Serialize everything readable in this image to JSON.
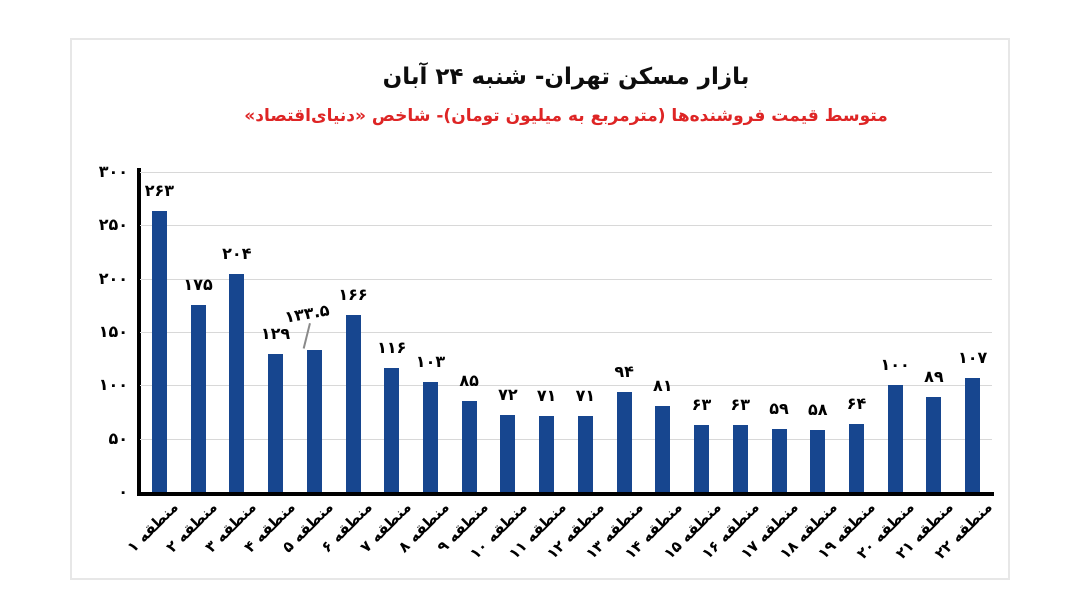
{
  "colors": {
    "bar": "#17468F",
    "subtitle_red": "#DE2525",
    "gridline": "#D8D8D8",
    "axis": "#000000",
    "card_border": "#E7E7E7",
    "background": "#FFFFFF"
  },
  "chart_data": {
    "type": "bar",
    "title": "بازار مسکن تهران- شنبه ۲۴ آبان",
    "subtitle": "متوسط قیمت فروشنده‌ها (مترمربع به میلیون تومان)- شاخص «دنیای‌اقتصاد»",
    "categories": [
      "منطقه ۱",
      "منطقه ۲",
      "منطقه ۳",
      "منطقه ۴",
      "منطقه ۵",
      "منطقه ۶",
      "منطقه ۷",
      "منطقه ۸",
      "منطقه ۹",
      "منطقه ۱۰",
      "منطقه ۱۱",
      "منطقه ۱۲",
      "منطقه ۱۳",
      "منطقه ۱۴",
      "منطقه ۱۵",
      "منطقه ۱۶",
      "منطقه ۱۷",
      "منطقه ۱۸",
      "منطقه ۱۹",
      "منطقه ۲۰",
      "منطقه ۲۱",
      "منطقه ۲۲"
    ],
    "values": [
      263,
      175,
      204,
      129,
      133.5,
      166,
      116,
      103,
      85,
      72,
      71,
      71,
      94,
      81,
      63,
      63,
      59,
      58,
      64,
      100,
      89,
      107
    ],
    "value_labels": [
      "۲۶۳",
      "۱۷۵",
      "۲۰۴",
      "۱۲۹",
      "۱۳۳.۵",
      "۱۶۶",
      "۱۱۶",
      "۱۰۳",
      "۸۵",
      "۷۲",
      "۷۱",
      "۷۱",
      "۹۴",
      "۸۱",
      "۶۳",
      "۶۳",
      "۵۹",
      "۵۸",
      "۶۴",
      "۱۰۰",
      "۸۹",
      "۱۰۷"
    ],
    "xlabel": "",
    "ylabel": "",
    "ylim": [
      0,
      300
    ],
    "y_axis": {
      "tick_labels": [
        "۳۰۰",
        "۲۵۰",
        "۲۰۰",
        "۱۵۰",
        "۱۰۰",
        "۵۰",
        "۰"
      ],
      "tick_values": [
        300,
        250,
        200,
        150,
        100,
        50,
        0
      ]
    },
    "grid": "horizontal",
    "legend": "none",
    "callout": {
      "index": 4,
      "has_leader_line": true
    }
  }
}
